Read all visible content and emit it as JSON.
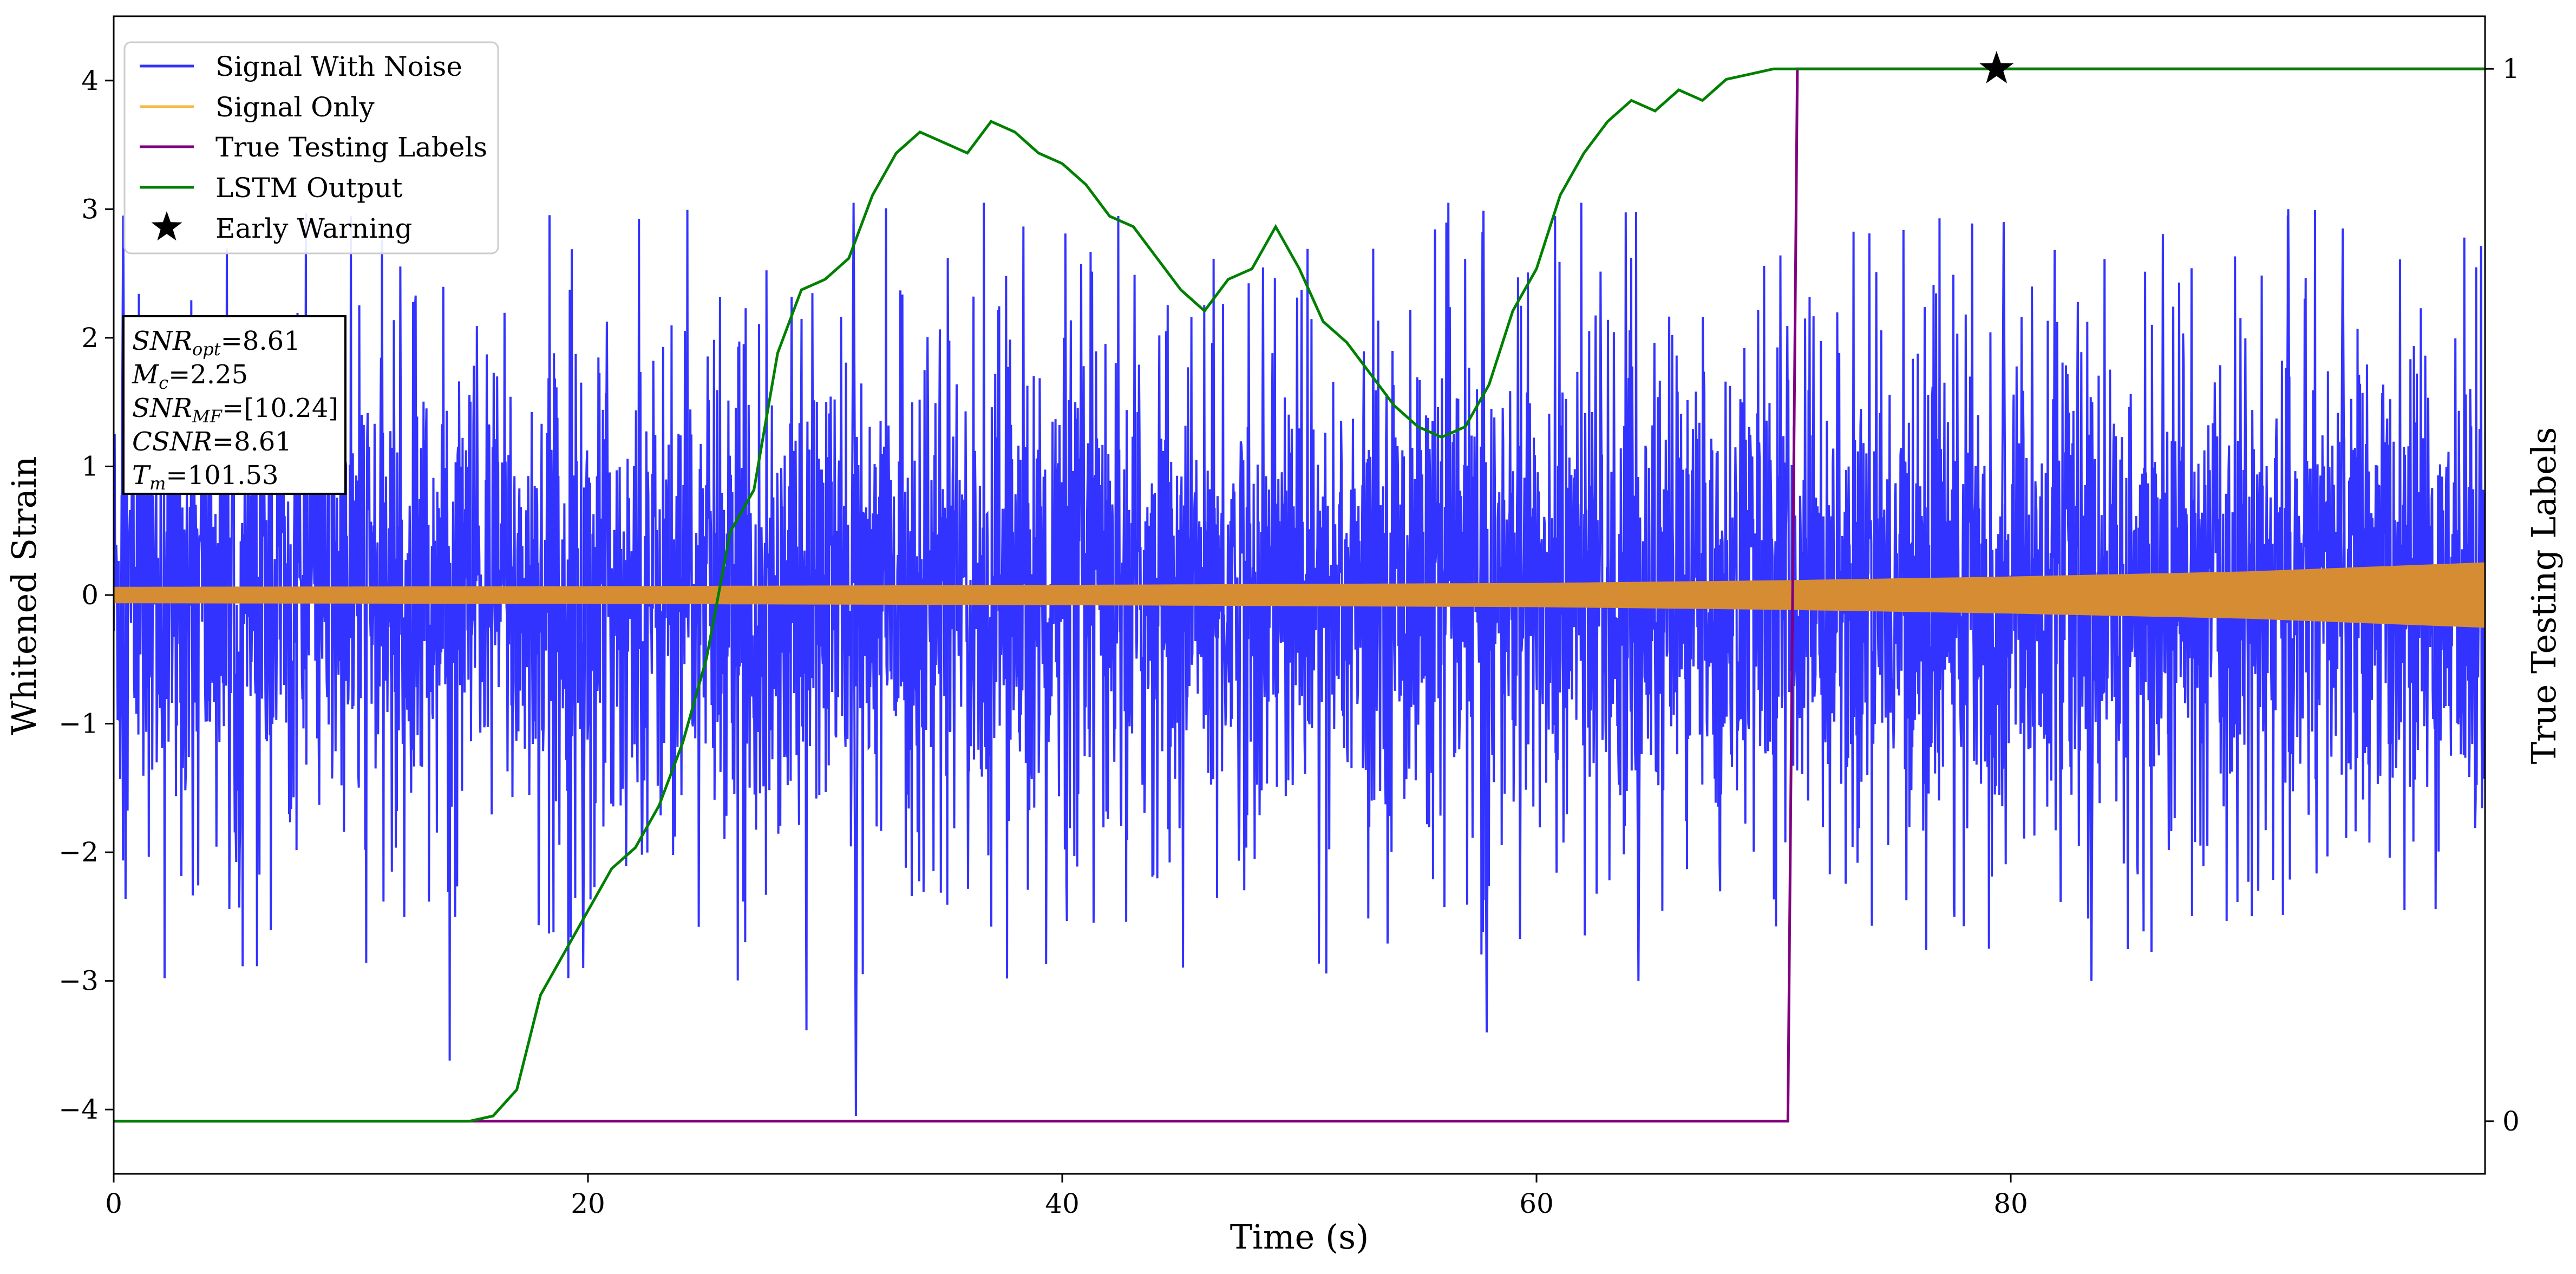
{
  "chart_data": {
    "type": "line",
    "title": "",
    "xlabel": "Time (s)",
    "ylabel": "Whitened Strain",
    "ylabel_right": "True Testing Labels",
    "xlim": [
      0,
      100
    ],
    "ylim": [
      -4.5,
      4.5
    ],
    "ylim_right": [
      -0.05,
      1.05
    ],
    "x_ticks": [
      0,
      20,
      40,
      60,
      80
    ],
    "x_tick_labels": [
      "0",
      "20",
      "40",
      "60",
      "80"
    ],
    "y_ticks": [
      -4,
      -3,
      -2,
      -1,
      0,
      1,
      2,
      3,
      4
    ],
    "y_tick_labels": [
      "−4",
      "−3",
      "−2",
      "−1",
      "0",
      "1",
      "2",
      "3",
      "4"
    ],
    "y_right_ticks": [
      0,
      1
    ],
    "y_right_tick_labels": [
      "0",
      "1"
    ],
    "grid": false,
    "legend_position": "top-left",
    "legend": [
      {
        "label": "Signal With Noise",
        "color": "#3333ff",
        "marker": "line"
      },
      {
        "label": "Signal Only",
        "color": "#f5b942",
        "marker": "line"
      },
      {
        "label": "True Testing Labels",
        "color": "#800080",
        "marker": "line"
      },
      {
        "label": "LSTM Output",
        "color": "#008000",
        "marker": "line"
      },
      {
        "label": "Early Warning",
        "color": "#000000",
        "marker": "star"
      }
    ],
    "annotation": {
      "lines": [
        {
          "sym": "SNR",
          "sub": "opt",
          "rest": "=8.61"
        },
        {
          "sym": "M",
          "sub": "c",
          "rest": "=2.25"
        },
        {
          "sym": "SNR",
          "sub": "MF",
          "rest": "=[10.24]"
        },
        {
          "sym": "CSNR",
          "sub": "",
          "rest": "=8.61"
        },
        {
          "sym": "T",
          "sub": "m",
          "rest": "=101.53"
        }
      ]
    },
    "series": [
      {
        "name": "Signal With Noise",
        "axis": "left",
        "color": "#3333ff",
        "style": "dense-noise",
        "x_range": [
          0,
          100
        ],
        "band_typical": [
          -1.2,
          1.2
        ],
        "band_peaks": [
          -3.0,
          3.0
        ],
        "min": -4.05,
        "max": 3.05
      },
      {
        "name": "Signal Only",
        "axis": "left",
        "color": "#d58c32",
        "style": "dense-band",
        "x": [
          0,
          20,
          40,
          60,
          70,
          80,
          90,
          100
        ],
        "amplitude": [
          0.06,
          0.065,
          0.075,
          0.09,
          0.11,
          0.14,
          0.18,
          0.25
        ]
      },
      {
        "name": "True Testing Labels",
        "axis": "right",
        "color": "#800080",
        "x": [
          0,
          70.6,
          71.0,
          100
        ],
        "y": [
          0,
          0,
          1,
          1
        ]
      },
      {
        "name": "LSTM Output",
        "axis": "right",
        "color": "#008000",
        "x": [
          0,
          15,
          16,
          17,
          18,
          19,
          20,
          21,
          22,
          23,
          24,
          25,
          26,
          27,
          28,
          29,
          30,
          31,
          32,
          33,
          34,
          35,
          36,
          37,
          38,
          39,
          40,
          41,
          42,
          43,
          44,
          45,
          46,
          47,
          48,
          49,
          50,
          51,
          52,
          53,
          54,
          55,
          56,
          57,
          58,
          59,
          60,
          61,
          62,
          63,
          64,
          65,
          66,
          67,
          68,
          69,
          70,
          71,
          72,
          73,
          74,
          75,
          76,
          77,
          78,
          79,
          80,
          85,
          90,
          95,
          100
        ],
        "y": [
          0,
          0,
          0.005,
          0.03,
          0.12,
          0.16,
          0.2,
          0.24,
          0.26,
          0.3,
          0.36,
          0.44,
          0.56,
          0.6,
          0.73,
          0.79,
          0.8,
          0.82,
          0.88,
          0.92,
          0.94,
          0.93,
          0.92,
          0.95,
          0.94,
          0.92,
          0.91,
          0.89,
          0.86,
          0.85,
          0.82,
          0.79,
          0.77,
          0.8,
          0.81,
          0.85,
          0.81,
          0.76,
          0.74,
          0.71,
          0.68,
          0.66,
          0.65,
          0.66,
          0.7,
          0.77,
          0.81,
          0.88,
          0.92,
          0.95,
          0.97,
          0.96,
          0.98,
          0.97,
          0.99,
          0.995,
          1.0,
          1.0,
          1.0,
          1.0,
          1.0,
          1.0,
          1.0,
          1.0,
          1.0,
          1.0,
          1.0,
          1.0,
          1.0,
          1.0,
          1.0
        ]
      }
    ],
    "early_warning": {
      "x": 79.4,
      "y_right": 1.0,
      "label": "Early Warning"
    }
  }
}
